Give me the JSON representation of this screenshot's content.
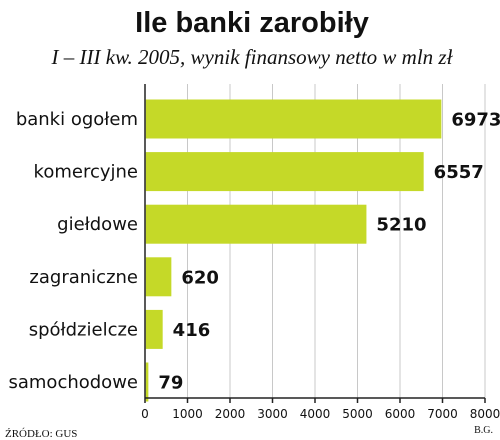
{
  "title": "Ile banki zarobiły",
  "subtitle": "I – III kw. 2005, wynik finansowy netto w mln zł",
  "source": "ŹRÓDŁO: GUS",
  "author": "B.G.",
  "colors": {
    "bar": "#c5d928",
    "grid": "#c8c8c8",
    "axis": "#222222"
  },
  "chart_data": {
    "type": "bar",
    "orientation": "horizontal",
    "title": "Ile banki zarobiły",
    "subtitle": "I – III kw. 2005, wynik finansowy netto w mln zł",
    "categories": [
      "banki ogołem",
      "komercyjne",
      "giełdowe",
      "zagraniczne",
      "spółdzielcze",
      "samochodowe"
    ],
    "values": [
      6973,
      6557,
      5210,
      620,
      416,
      79
    ],
    "value_labels": [
      "6973",
      "6557",
      "5210",
      "620",
      "416",
      "79"
    ],
    "xlim": [
      0,
      8000
    ],
    "xticks": [
      0,
      1000,
      2000,
      3000,
      4000,
      5000,
      6000,
      7000,
      8000
    ],
    "xtick_labels": [
      "0",
      "1000",
      "2000",
      "3000",
      "4000",
      "5000",
      "6000",
      "7000",
      "8000"
    ],
    "grid": true,
    "legend": "none"
  }
}
